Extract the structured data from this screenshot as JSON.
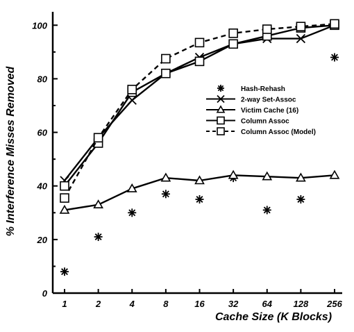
{
  "chart_data": {
    "type": "line",
    "title": "",
    "xlabel": "Cache Size (K Blocks)",
    "ylabel": "% Interference Misses Removed",
    "categories": [
      "1",
      "2",
      "4",
      "8",
      "16",
      "32",
      "64",
      "128",
      "256"
    ],
    "ylim": [
      0,
      105
    ],
    "yticks": [
      "0",
      "20",
      "40",
      "60",
      "80",
      "100"
    ],
    "grid": false,
    "legend_position": "right-center",
    "series": [
      {
        "name": "Hash-Rehash",
        "marker": "asterisk",
        "line": "none",
        "values": [
          8,
          21,
          30,
          37,
          35,
          43,
          31,
          35,
          88
        ]
      },
      {
        "name": "2-way Set-Assoc",
        "marker": "x",
        "line": "solid",
        "values": [
          42,
          58,
          72,
          82,
          88,
          93,
          95,
          95,
          100
        ]
      },
      {
        "name": "Victim Cache (16)",
        "marker": "triangle",
        "line": "solid",
        "values": [
          31,
          33,
          39,
          43,
          42,
          44,
          43.5,
          43,
          44
        ]
      },
      {
        "name": "Column Assoc",
        "marker": "square",
        "line": "solid",
        "values": [
          40,
          56,
          75,
          82,
          86.5,
          93,
          96,
          99,
          100
        ]
      },
      {
        "name": "Column Assoc (Model)",
        "marker": "square",
        "line": "dashed",
        "values": [
          35.5,
          58,
          76,
          87.5,
          93.5,
          97,
          98.5,
          99.5,
          100.5
        ]
      }
    ]
  }
}
